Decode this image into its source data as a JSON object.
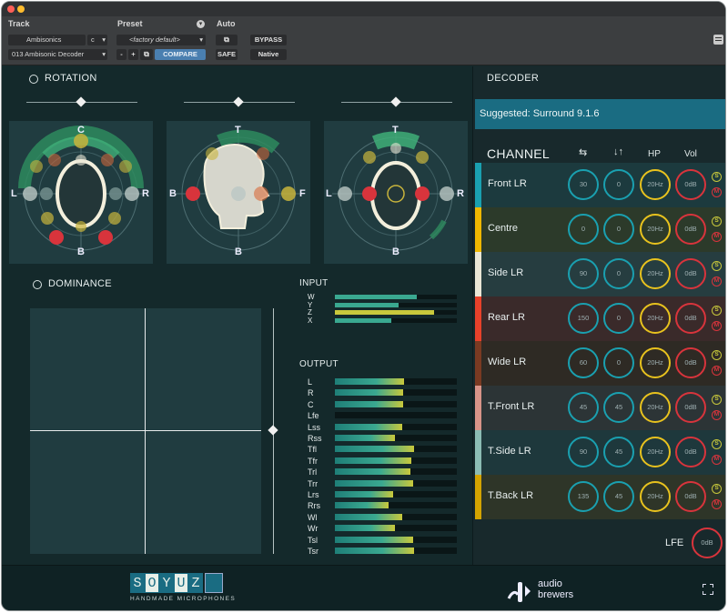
{
  "host": {
    "track_label": "Track",
    "preset_label": "Preset",
    "auto_label": "Auto",
    "track_format": "Ambisonics",
    "track_channel": "c",
    "track_name": "013 Ambisonic Decoder",
    "preset_value": "<factory default>",
    "minus_label": "-",
    "plus_label": "+",
    "compare_label": "COMPARE",
    "bypass_label": "BYPASS",
    "safe_label": "SAFE",
    "native_label": "Native"
  },
  "rotation": {
    "title": "ROTATION",
    "front": {
      "top": "C",
      "bottom": "B",
      "left": "L",
      "right": "R"
    },
    "side": {
      "top": "T",
      "bottom": "B",
      "left": "B",
      "right": "F"
    },
    "rear": {
      "top": "T",
      "bottom": "B",
      "left": "L",
      "right": "R"
    }
  },
  "dominance": {
    "title": "DOMINANCE"
  },
  "input": {
    "title": "INPUT",
    "meters": [
      {
        "label": "W",
        "level": 0.67,
        "color": "#3aa890"
      },
      {
        "label": "Y",
        "level": 0.52,
        "color": "#3aa890"
      },
      {
        "label": "Z",
        "level": 0.81,
        "color": "#c8c83c"
      },
      {
        "label": "X",
        "level": 0.46,
        "color": "#3aa890"
      }
    ]
  },
  "output": {
    "title": "OUTPUT",
    "meters": [
      {
        "label": "L",
        "level": 0.57
      },
      {
        "label": "R",
        "level": 0.56
      },
      {
        "label": "C",
        "level": 0.56
      },
      {
        "label": "Lfe",
        "level": 0.0
      },
      {
        "label": "Lss",
        "level": 0.55
      },
      {
        "label": "Rss",
        "level": 0.49
      },
      {
        "label": "Tfl",
        "level": 0.65
      },
      {
        "label": "Tfr",
        "level": 0.63
      },
      {
        "label": "Trl",
        "level": 0.62
      },
      {
        "label": "Trr",
        "level": 0.64
      },
      {
        "label": "Lrs",
        "level": 0.48
      },
      {
        "label": "Rrs",
        "level": 0.44
      },
      {
        "label": "Wl",
        "level": 0.55
      },
      {
        "label": "Wr",
        "level": 0.49
      },
      {
        "label": "Tsl",
        "level": 0.64
      },
      {
        "label": "Tsr",
        "level": 0.65
      }
    ]
  },
  "decoder": {
    "title": "DECODER",
    "suggested": "Suggested: Surround 9.1.6",
    "channel_header": "CHANNEL",
    "hp_header": "HP",
    "vol_header": "Vol",
    "solo_label": "S",
    "mute_label": "M",
    "channels": [
      {
        "name": "Front LR",
        "az": "30",
        "el": "0",
        "hp": "20Hz",
        "vol": "0dB",
        "color": "#1aa0b0",
        "bg": "#1c3a3e"
      },
      {
        "name": "Centre",
        "az": "0",
        "el": "0",
        "hp": "20Hz",
        "vol": "0dB",
        "color": "#f0b800",
        "bg": "#2c3a2a"
      },
      {
        "name": "Side LR",
        "az": "90",
        "el": "0",
        "hp": "20Hz",
        "vol": "0dB",
        "color": "#eae6d6",
        "bg": "#263d40"
      },
      {
        "name": "Rear LR",
        "az": "150",
        "el": "0",
        "hp": "20Hz",
        "vol": "0dB",
        "color": "#e8412a",
        "bg": "#3a2a2a"
      },
      {
        "name": "Wide LR",
        "az": "60",
        "el": "0",
        "hp": "20Hz",
        "vol": "0dB",
        "color": "#7a3a22",
        "bg": "#2e2a24"
      },
      {
        "name": "T.Front LR",
        "az": "45",
        "el": "45",
        "hp": "20Hz",
        "vol": "0dB",
        "color": "#d89488",
        "bg": "#2c3436"
      },
      {
        "name": "T.Side LR",
        "az": "90",
        "el": "45",
        "hp": "20Hz",
        "vol": "0dB",
        "color": "#8cbcb4",
        "bg": "#1e383c"
      },
      {
        "name": "T.Back LR",
        "az": "135",
        "el": "45",
        "hp": "20Hz",
        "vol": "0dB",
        "color": "#d4a400",
        "bg": "#2e3528"
      }
    ],
    "lfe_label": "LFE",
    "lfe_vol": "0dB"
  },
  "footer": {
    "soyuz_letters": [
      "S",
      "O",
      "Y",
      "U",
      "Z"
    ],
    "soyuz_tagline": "HANDMADE MICROPHONES",
    "brand_line1": "audio",
    "brand_line2": "brewers"
  },
  "colors": {
    "teal": "#1aa0b0",
    "yellow": "#e8c21e",
    "red": "#d8343c",
    "green_arc": "#3a9c6c",
    "background": "#14292b"
  },
  "icons": [
    "link-icon",
    "sort-icon",
    "expand-icon",
    "menu-icon",
    "copy-icon"
  ]
}
